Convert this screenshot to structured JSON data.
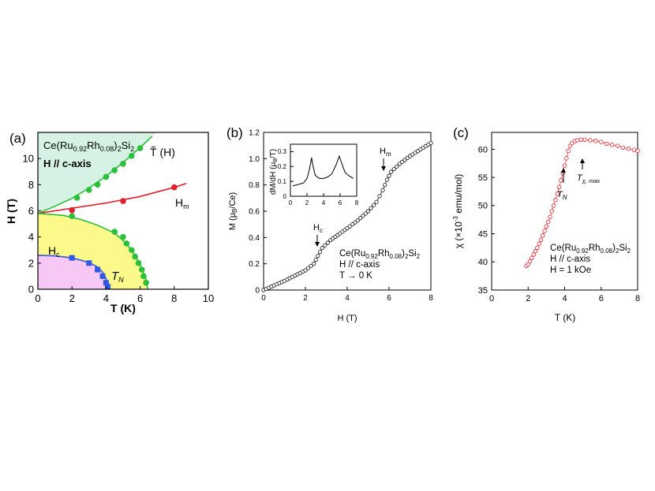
{
  "figure_panels": [
    "(a)",
    "(b)",
    "(c)"
  ],
  "chart_data": [
    {
      "panel": "(a)",
      "type": "scatter",
      "title": "Ce(Ru0.92Rh0.08)2Si2",
      "title_parts": {
        "pre": "Ce(Ru",
        "s1": "0.92",
        "mid": "Rh",
        "s2": "0.08",
        "post": ")",
        "s3": "2",
        "tail": "Si",
        "s4": "2"
      },
      "subtitle": "H // c-axis",
      "xlabel": "T (K)",
      "ylabel": "H (T)",
      "xlim": [
        0,
        10
      ],
      "ylim": [
        0,
        12
      ],
      "xticks": [
        "0",
        "2",
        "4",
        "6",
        "8",
        "10"
      ],
      "yticks": [
        "0",
        "2",
        "4",
        "6",
        "8",
        "10"
      ],
      "regions": [
        {
          "name": "Ttilde-region",
          "color": "#d6f2e4"
        },
        {
          "name": "paramagnetic-region",
          "color": "#fbf98a"
        },
        {
          "name": "TN-region",
          "color": "#f8c8f4"
        }
      ],
      "annotations": {
        "Hc": {
          "main": "H",
          "sub": "c"
        },
        "Hm": {
          "main": "H",
          "sub": "m"
        },
        "TN": {
          "main": "T",
          "sub": "N"
        },
        "Ttilde": "T̃ (H)"
      },
      "series": [
        {
          "name": "T̃(H)",
          "color": "#2bbf3a",
          "curve": [
            [
              0,
              5.8
            ],
            [
              1,
              6.35
            ],
            [
              2,
              6.95
            ],
            [
              3,
              7.75
            ],
            [
              4,
              8.65
            ],
            [
              5,
              9.7
            ],
            [
              6,
              10.85
            ],
            [
              6.7,
              11.7
            ]
          ],
          "points": [
            [
              2.3,
              7.0
            ],
            [
              3.0,
              7.6
            ],
            [
              3.5,
              8.0
            ],
            [
              4.0,
              8.6
            ],
            [
              4.5,
              9.1
            ],
            [
              5.0,
              9.6
            ],
            [
              5.5,
              10.2
            ],
            [
              6.0,
              10.8
            ]
          ]
        },
        {
          "name": "Hm",
          "color": "#e0202a",
          "curve": [
            [
              0,
              5.8
            ],
            [
              2,
              6.2
            ],
            [
              4,
              6.6
            ],
            [
              6,
              7.1
            ],
            [
              8,
              7.8
            ],
            [
              8.7,
              8.1
            ]
          ],
          "points": [
            [
              2.0,
              6.05
            ],
            [
              5.0,
              6.75
            ],
            [
              8.0,
              7.8
            ]
          ]
        },
        {
          "name": "Hc-boundary",
          "color": "#2bbf3a",
          "curve": [
            [
              0,
              5.8
            ],
            [
              1.5,
              5.65
            ],
            [
              2.5,
              5.35
            ],
            [
              3.5,
              4.9
            ],
            [
              4.5,
              4.3
            ],
            [
              5.2,
              3.5
            ],
            [
              5.7,
              2.6
            ],
            [
              6.1,
              1.6
            ],
            [
              6.35,
              0.7
            ],
            [
              6.45,
              0
            ]
          ],
          "points": [
            [
              2.0,
              5.6
            ],
            [
              4.5,
              4.4
            ],
            [
              5.0,
              4.0
            ],
            [
              5.2,
              3.5
            ],
            [
              5.5,
              3.0
            ],
            [
              5.7,
              2.5
            ],
            [
              5.9,
              2.0
            ],
            [
              6.1,
              1.5
            ],
            [
              6.2,
              1.0
            ],
            [
              6.35,
              0.5
            ]
          ]
        },
        {
          "name": "TN",
          "color": "#2f58e8",
          "curve": [
            [
              0,
              2.6
            ],
            [
              1,
              2.55
            ],
            [
              2,
              2.4
            ],
            [
              3,
              2.05
            ],
            [
              3.5,
              1.7
            ],
            [
              3.8,
              1.3
            ],
            [
              4.0,
              0.8
            ],
            [
              4.15,
              0.3
            ],
            [
              4.2,
              0
            ]
          ],
          "points": [
            [
              2.0,
              2.4
            ],
            [
              3.0,
              2.0
            ],
            [
              3.5,
              1.5
            ],
            [
              3.8,
              1.0
            ],
            [
              4.0,
              0.5
            ],
            [
              4.1,
              0.2
            ]
          ]
        }
      ]
    },
    {
      "panel": "(b)",
      "type": "line",
      "xlabel": "H (T)",
      "ylabel": "M (μB/Ce)",
      "ylabel_parts": {
        "pre": "M (μ",
        "sub": "B",
        "post": "/Ce)"
      },
      "xlim": [
        0,
        8
      ],
      "ylim": [
        0,
        1.2
      ],
      "xticks": [
        "0",
        "2",
        "4",
        "6",
        "8"
      ],
      "yticks": [
        "0",
        "0.2",
        "0.4",
        "0.6",
        "0.8",
        "1.0",
        "1.2"
      ],
      "legend_lines": [
        "H // c-axis",
        "T → 0 K"
      ],
      "annotations": {
        "Hc": {
          "main": "H",
          "sub": "c"
        },
        "Hm": {
          "main": "H",
          "sub": "m"
        }
      },
      "series": [
        {
          "name": "M",
          "color": "#111111",
          "curve": [
            [
              0,
              0
            ],
            [
              0.5,
              0.035
            ],
            [
              1.0,
              0.07
            ],
            [
              1.5,
              0.11
            ],
            [
              2.0,
              0.15
            ],
            [
              2.4,
              0.2
            ],
            [
              2.6,
              0.26
            ],
            [
              2.8,
              0.32
            ],
            [
              3.2,
              0.38
            ],
            [
              4.0,
              0.47
            ],
            [
              4.5,
              0.53
            ],
            [
              5.0,
              0.6
            ],
            [
              5.4,
              0.67
            ],
            [
              5.7,
              0.76
            ],
            [
              5.9,
              0.84
            ],
            [
              6.1,
              0.9
            ],
            [
              6.5,
              0.96
            ],
            [
              7.0,
              1.02
            ],
            [
              7.5,
              1.07
            ],
            [
              8.0,
              1.12
            ]
          ]
        }
      ],
      "inset": {
        "type": "line",
        "ylabel": "dM/dH (μB/T)",
        "ylabel_parts": {
          "pre": "dM/dH (μ",
          "sub": "B",
          "post": "/T)"
        },
        "xlim": [
          0,
          8
        ],
        "ylim": [
          0,
          0.35
        ],
        "xticks": [
          "0",
          "2",
          "4",
          "6",
          "8"
        ],
        "yticks": [
          "0",
          "0.1",
          "0.2",
          "0.3"
        ],
        "series": [
          {
            "name": "dM/dH",
            "curve": [
              [
                0.3,
                0.07
              ],
              [
                1.0,
                0.08
              ],
              [
                1.6,
                0.09
              ],
              [
                2.0,
                0.12
              ],
              [
                2.3,
                0.18
              ],
              [
                2.55,
                0.26
              ],
              [
                2.7,
                0.21
              ],
              [
                3.0,
                0.14
              ],
              [
                3.5,
                0.12
              ],
              [
                4.0,
                0.12
              ],
              [
                4.5,
                0.13
              ],
              [
                5.0,
                0.15
              ],
              [
                5.5,
                0.21
              ],
              [
                5.9,
                0.27
              ],
              [
                6.2,
                0.22
              ],
              [
                6.6,
                0.16
              ],
              [
                7.0,
                0.14
              ],
              [
                7.6,
                0.12
              ]
            ]
          }
        ]
      }
    },
    {
      "panel": "(c)",
      "type": "scatter",
      "xlabel": "T (K)",
      "ylabel": "χ (×10⁻³ emu/mol)",
      "ylabel_parts": {
        "pre": "χ (×10",
        "sup": "-3",
        "post": " emu/mol)"
      },
      "xlim": [
        0,
        8
      ],
      "ylim": [
        35,
        63
      ],
      "xticks": [
        "0",
        "2",
        "4",
        "6",
        "8"
      ],
      "yticks": [
        "35",
        "40",
        "45",
        "50",
        "55",
        "60"
      ],
      "legend_lines": [
        "H // c-axis",
        "H = 1 kOe"
      ],
      "annotations": {
        "TN": {
          "main": "T",
          "sub": "N"
        },
        "Tchimax": {
          "main": "T",
          "sub": "χ, max"
        }
      },
      "series": [
        {
          "name": "χ(T)",
          "color": "#e0202a",
          "points": [
            [
              1.9,
              39.3
            ],
            [
              2.0,
              39.6
            ],
            [
              2.1,
              40.1
            ],
            [
              2.2,
              40.7
            ],
            [
              2.3,
              41.3
            ],
            [
              2.4,
              41.9
            ],
            [
              2.5,
              42.5
            ],
            [
              2.6,
              43.2
            ],
            [
              2.7,
              43.9
            ],
            [
              2.8,
              44.7
            ],
            [
              2.9,
              45.5
            ],
            [
              3.0,
              46.3
            ],
            [
              3.1,
              47.1
            ],
            [
              3.2,
              48.0
            ],
            [
              3.3,
              49.0
            ],
            [
              3.4,
              50.0
            ],
            [
              3.5,
              51.0
            ],
            [
              3.6,
              52.1
            ],
            [
              3.7,
              53.3
            ],
            [
              3.8,
              54.5
            ],
            [
              3.9,
              55.8
            ],
            [
              4.0,
              57.1
            ],
            [
              4.1,
              58.4
            ],
            [
              4.2,
              59.7
            ],
            [
              4.3,
              60.6
            ],
            [
              4.4,
              61.1
            ],
            [
              4.55,
              61.45
            ],
            [
              4.7,
              61.6
            ],
            [
              4.9,
              61.7
            ],
            [
              5.1,
              61.7
            ],
            [
              5.4,
              61.6
            ],
            [
              5.7,
              61.5
            ],
            [
              6.0,
              61.3
            ],
            [
              6.3,
              61.0
            ],
            [
              6.6,
              60.8
            ],
            [
              6.9,
              60.6
            ],
            [
              7.2,
              60.3
            ],
            [
              7.5,
              60.1
            ],
            [
              7.8,
              59.9
            ],
            [
              8.0,
              59.7
            ]
          ]
        }
      ]
    }
  ]
}
